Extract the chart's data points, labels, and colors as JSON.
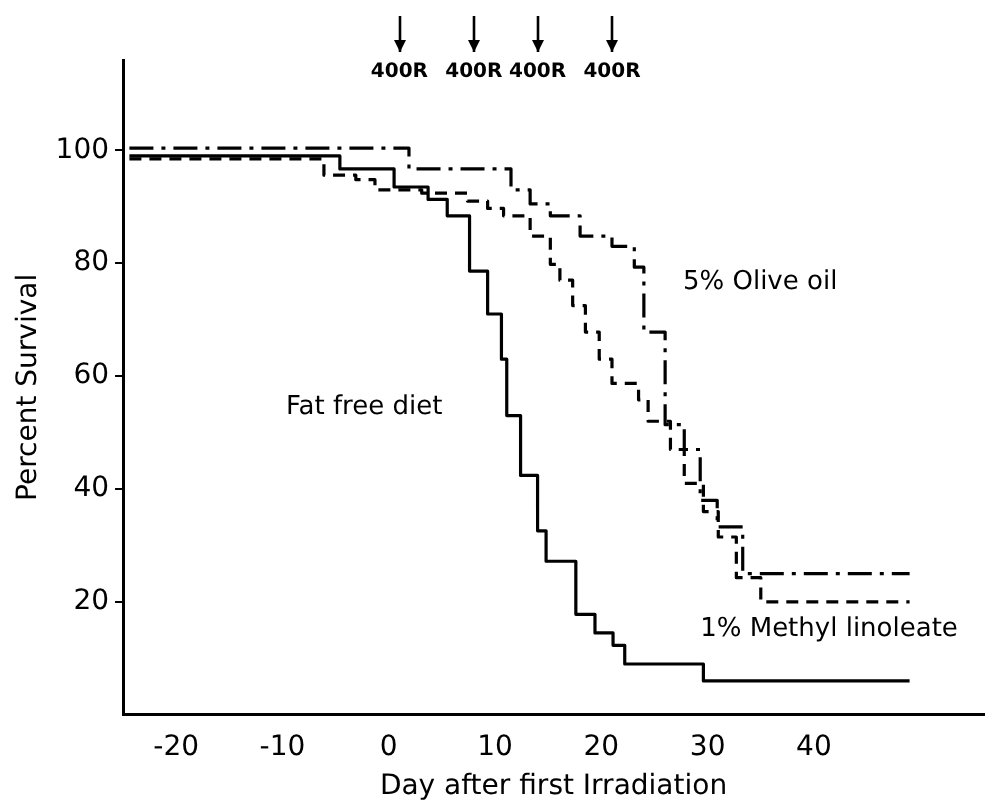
{
  "chart_data": {
    "type": "step",
    "xlabel": "Day after first Irradiation",
    "ylabel": "Percent Survival",
    "xlim": [
      -25,
      56
    ],
    "xticks": [
      -20,
      -10,
      0,
      10,
      20,
      30,
      40
    ],
    "ylim": [
      0,
      116
    ],
    "yticks": [
      20,
      40,
      60,
      80,
      100
    ],
    "grid": false,
    "legend": false,
    "marker": "none",
    "series": [
      {
        "color": "#000000",
        "line_style": "solid",
        "x": [
          -24.4,
          -4.6,
          0.5,
          3.7,
          5.5,
          7.6,
          9.3,
          10.6,
          11.1,
          12.4,
          14,
          14.8,
          17.6,
          19.4,
          21.1,
          22.2,
          29.6,
          49
        ],
        "values": [
          99,
          96.7,
          93.5,
          91.3,
          88.4,
          78.6,
          71,
          63,
          53,
          42.4,
          32.6,
          27.2,
          17.8,
          14.5,
          12.3,
          9,
          6,
          6
        ]
      },
      {
        "color": "#000000",
        "line_style": "dashdot",
        "x": [
          -24.4,
          1.9,
          11.5,
          13.3,
          15.2,
          18,
          21,
          23.1,
          24,
          26,
          27.8,
          29.3,
          30.9,
          33.3,
          49
        ],
        "values": [
          100.4,
          96.7,
          93,
          90.5,
          88.4,
          84.8,
          83,
          79.3,
          67.8,
          51.4,
          47,
          38,
          33.3,
          25,
          25
        ]
      },
      {
        "color": "#000000",
        "line_style": "dashed",
        "x": [
          -24.4,
          -6.1,
          -3.1,
          -1.3,
          3.1,
          7.4,
          9.3,
          10.8,
          13.3,
          15.2,
          16.1,
          17.3,
          18.5,
          19.8,
          21,
          23.5,
          24.4,
          26.5,
          27.8,
          29.6,
          31,
          32.7,
          35,
          49
        ],
        "values": [
          98.5,
          95.6,
          94.8,
          93,
          92.4,
          91,
          89.7,
          88.4,
          84.8,
          79.8,
          77,
          72.5,
          67.8,
          63,
          58.7,
          55.8,
          52,
          47,
          41,
          36,
          31.5,
          24.3,
          20,
          20
        ]
      }
    ],
    "ref_lines": [
      {
        "axis": "x",
        "value": 1,
        "label": "400R"
      },
      {
        "axis": "x",
        "value": 8,
        "label": "400R"
      },
      {
        "axis": "x",
        "value": 14,
        "label": "400R"
      },
      {
        "axis": "x",
        "value": 21,
        "label": "400R"
      }
    ],
    "annotations": [
      "5% Olive oil",
      "Fat free diet",
      "1% Methyl linoleate"
    ]
  }
}
